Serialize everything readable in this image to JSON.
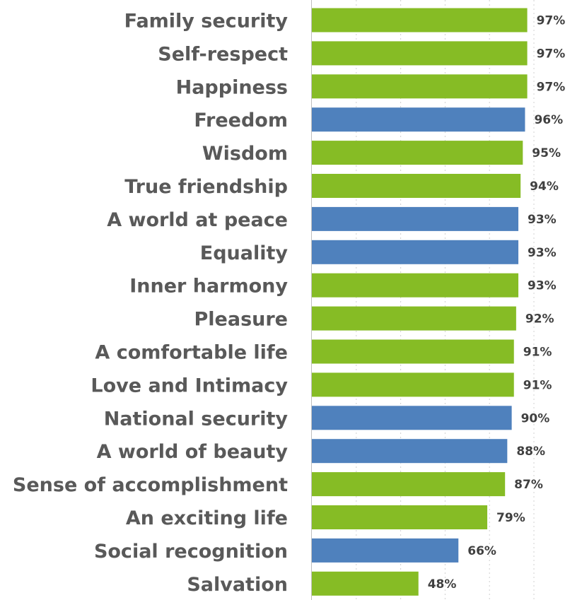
{
  "chart_data": {
    "type": "bar",
    "orientation": "horizontal",
    "categories": [
      "Family security",
      "Self-respect",
      "Happiness",
      "Freedom",
      "Wisdom",
      "True friendship",
      "A world at peace",
      "Equality",
      "Inner harmony",
      "Pleasure",
      "A comfortable life",
      "Love and Intimacy",
      "National security",
      "A world of beauty",
      "Sense of accomplishment",
      "An exciting life",
      "Social recognition",
      "Salvation"
    ],
    "values": [
      97,
      97,
      97,
      96,
      95,
      94,
      93,
      93,
      93,
      92,
      91,
      91,
      90,
      88,
      87,
      79,
      66,
      48
    ],
    "value_labels": [
      "97%",
      "97%",
      "97%",
      "96%",
      "95%",
      "94%",
      "93%",
      "93%",
      "93%",
      "92%",
      "91%",
      "91%",
      "90%",
      "88%",
      "87%",
      "79%",
      "66%",
      "48%"
    ],
    "bar_colors": [
      "#86bc25",
      "#86bc25",
      "#86bc25",
      "#4f81bd",
      "#86bc25",
      "#86bc25",
      "#4f81bd",
      "#4f81bd",
      "#86bc25",
      "#86bc25",
      "#86bc25",
      "#86bc25",
      "#4f81bd",
      "#4f81bd",
      "#86bc25",
      "#86bc25",
      "#4f81bd",
      "#86bc25"
    ],
    "colors": {
      "green": "#86bc25",
      "blue": "#4f81bd"
    },
    "xlim": [
      0,
      100
    ],
    "grid": true,
    "legend": "none",
    "title": "",
    "xlabel": "",
    "ylabel": ""
  }
}
